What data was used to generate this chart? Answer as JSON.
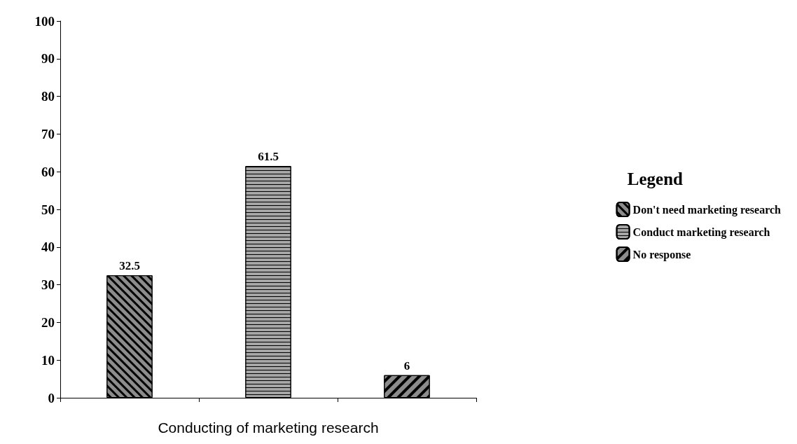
{
  "chart_data": {
    "type": "bar",
    "xlabel": "Conducting of marketing research",
    "legend_title": "Legend",
    "categories": [
      null,
      null,
      null
    ],
    "series": [
      {
        "name": "Don't need marketing research",
        "color": "#8c8c8c",
        "values": [
          32.5,
          null,
          null
        ]
      },
      {
        "name": "Conduct marketing research",
        "color": "#a6a6a6",
        "values": [
          null,
          61.5,
          null
        ]
      },
      {
        "name": "No response",
        "color": "#8c8c8c",
        "values": [
          null,
          null,
          6
        ]
      }
    ],
    "stacked": true,
    "data_labels": true,
    "ylim": [
      0,
      100
    ],
    "yticks": [
      0,
      10,
      20,
      30,
      40,
      50,
      60,
      70,
      80,
      90,
      100
    ],
    "grid": false,
    "legend": "right"
  }
}
